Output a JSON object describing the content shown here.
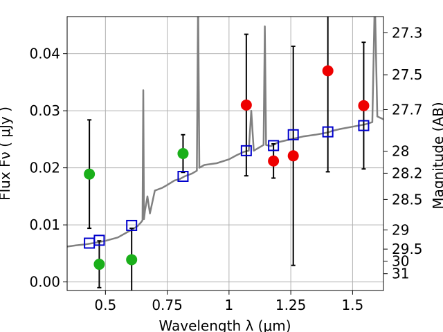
{
  "chart_data": {
    "type": "scatter",
    "xlabel": "Wavelength  λ (μm)",
    "ylabel": "Flux  Fν  ( μJy )",
    "ylabel_right": "Magnitude (AB)",
    "xlim": [
      0.345,
      1.625
    ],
    "ylim": [
      -0.0015,
      0.0465
    ],
    "x_ticks": [
      {
        "value": 0.5,
        "label": "0.5"
      },
      {
        "value": 0.75,
        "label": "0.75"
      },
      {
        "value": 1.0,
        "label": "1"
      },
      {
        "value": 1.25,
        "label": "1.25"
      },
      {
        "value": 1.5,
        "label": "1.5"
      }
    ],
    "y_ticks": [
      {
        "value": 0.0,
        "label": "0.00"
      },
      {
        "value": 0.01,
        "label": "0.01"
      },
      {
        "value": 0.02,
        "label": "0.02"
      },
      {
        "value": 0.03,
        "label": "0.03"
      },
      {
        "value": 0.04,
        "label": "0.04"
      }
    ],
    "right_ticks": [
      {
        "mag": 27.3,
        "label": "27.3"
      },
      {
        "mag": 27.5,
        "label": "27.5"
      },
      {
        "mag": 27.7,
        "label": "27.7"
      },
      {
        "mag": 28.0,
        "label": "28"
      },
      {
        "mag": 28.2,
        "label": "28.2"
      },
      {
        "mag": 28.5,
        "label": "28.5"
      },
      {
        "mag": 29.0,
        "label": "29"
      },
      {
        "mag": 29.5,
        "label": "29.5"
      },
      {
        "mag": 30.0,
        "label": "30"
      },
      {
        "mag": 31.0,
        "label": "31"
      }
    ],
    "grid": true,
    "colors": {
      "model": "#808080",
      "green": "#1aaf1a",
      "red": "#ee0000",
      "blue": "#0000cc",
      "errorbar": "#000000"
    },
    "model_spectrum": [
      [
        0.345,
        0.0062
      ],
      [
        0.38,
        0.0064
      ],
      [
        0.42,
        0.0066
      ],
      [
        0.45,
        0.0068
      ],
      [
        0.5,
        0.0072
      ],
      [
        0.55,
        0.0078
      ],
      [
        0.6,
        0.009
      ],
      [
        0.63,
        0.0098
      ],
      [
        0.645,
        0.0105
      ],
      [
        0.65,
        0.0108
      ],
      [
        0.653,
        0.0336
      ],
      [
        0.656,
        0.011
      ],
      [
        0.66,
        0.0125
      ],
      [
        0.67,
        0.015
      ],
      [
        0.68,
        0.012
      ],
      [
        0.7,
        0.016
      ],
      [
        0.73,
        0.0165
      ],
      [
        0.75,
        0.017
      ],
      [
        0.78,
        0.0178
      ],
      [
        0.8,
        0.018
      ],
      [
        0.82,
        0.0185
      ],
      [
        0.85,
        0.019
      ],
      [
        0.87,
        0.0195
      ],
      [
        0.875,
        0.05
      ],
      [
        0.88,
        0.02
      ],
      [
        0.9,
        0.0205
      ],
      [
        0.95,
        0.0208
      ],
      [
        1.0,
        0.0215
      ],
      [
        1.03,
        0.0222
      ],
      [
        1.06,
        0.0228
      ],
      [
        1.08,
        0.023
      ],
      [
        1.09,
        0.03
      ],
      [
        1.1,
        0.023
      ],
      [
        1.12,
        0.0235
      ],
      [
        1.14,
        0.024
      ],
      [
        1.145,
        0.0448
      ],
      [
        1.15,
        0.024
      ],
      [
        1.17,
        0.0238
      ],
      [
        1.2,
        0.0245
      ],
      [
        1.25,
        0.025
      ],
      [
        1.3,
        0.0255
      ],
      [
        1.35,
        0.0258
      ],
      [
        1.4,
        0.0262
      ],
      [
        1.42,
        0.0265
      ],
      [
        1.45,
        0.0268
      ],
      [
        1.5,
        0.0272
      ],
      [
        1.55,
        0.0276
      ],
      [
        1.58,
        0.028
      ],
      [
        1.59,
        0.05
      ],
      [
        1.6,
        0.029
      ],
      [
        1.625,
        0.0285
      ]
    ],
    "series": [
      {
        "marker": "filled-circle",
        "color": "green",
        "points": [
          {
            "x": 0.435,
            "y": 0.0189,
            "err": 0.0095
          },
          {
            "x": 0.475,
            "y": 0.0031,
            "err": 0.0041
          },
          {
            "x": 0.606,
            "y": 0.0039,
            "err": 0.0055
          },
          {
            "x": 0.814,
            "y": 0.0225,
            "err": 0.0033
          }
        ]
      },
      {
        "marker": "filled-circle",
        "color": "red",
        "points": [
          {
            "x": 1.07,
            "y": 0.031,
            "err": 0.0124
          },
          {
            "x": 1.18,
            "y": 0.0212,
            "err": 0.003
          },
          {
            "x": 1.26,
            "y": 0.0221,
            "err": 0.0192
          },
          {
            "x": 1.4,
            "y": 0.037,
            "err": 0.0177
          },
          {
            "x": 1.545,
            "y": 0.0309,
            "err": 0.0111
          }
        ]
      },
      {
        "marker": "open-square",
        "color": "blue",
        "points": [
          {
            "x": 0.435,
            "y": 0.0068
          },
          {
            "x": 0.475,
            "y": 0.0073
          },
          {
            "x": 0.606,
            "y": 0.0099
          },
          {
            "x": 0.814,
            "y": 0.0185
          },
          {
            "x": 1.07,
            "y": 0.023
          },
          {
            "x": 1.18,
            "y": 0.0239
          },
          {
            "x": 1.26,
            "y": 0.0258
          },
          {
            "x": 1.4,
            "y": 0.0263
          },
          {
            "x": 1.545,
            "y": 0.0274
          }
        ]
      }
    ]
  }
}
